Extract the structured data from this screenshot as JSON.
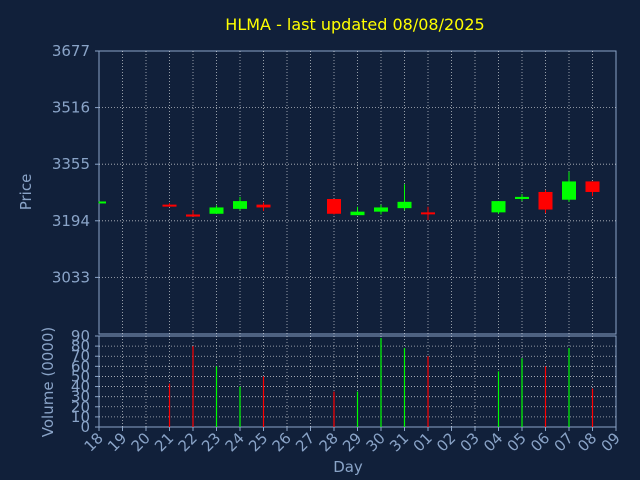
{
  "chart_data": {
    "type": "candlestick",
    "title": "HLMA - last updated 08/08/2025",
    "xlabel": "Day",
    "price_ylabel": "Price",
    "volume_ylabel": "Volume (0000)",
    "x_ticks": [
      "18",
      "19",
      "20",
      "21",
      "22",
      "23",
      "24",
      "25",
      "26",
      "27",
      "28",
      "29",
      "30",
      "31",
      "01",
      "02",
      "03",
      "04",
      "05",
      "06",
      "07",
      "08",
      "09"
    ],
    "price_ticks": [
      "3677",
      "3516",
      "3355",
      "3194",
      "3033"
    ],
    "price_ylim": [
      2872,
      3677
    ],
    "volume_ticks": [
      "0",
      "10",
      "20",
      "30",
      "40",
      "50",
      "60",
      "70",
      "80",
      "90"
    ],
    "volume_ylim": [
      0,
      90
    ],
    "colors": {
      "up": "#00ff00",
      "down": "#ff0000",
      "grid": "#ffffff",
      "axis": "#8aa4c8",
      "title": "#ffff00",
      "background": "#11203a",
      "plot_background": "#11203a"
    },
    "candles": [
      {
        "day": "18",
        "open": 3247,
        "high": 3249,
        "low": 3244,
        "close": 3249,
        "volume": 0
      },
      {
        "day": "21",
        "open": 3240,
        "high": 3244,
        "low": 3236,
        "close": 3236,
        "volume": 43
      },
      {
        "day": "22",
        "open": 3212,
        "high": 3224,
        "low": 3206,
        "close": 3206,
        "volume": 80
      },
      {
        "day": "23",
        "open": 3214,
        "high": 3238,
        "low": 3214,
        "close": 3232,
        "volume": 60
      },
      {
        "day": "24",
        "open": 3228,
        "high": 3262,
        "low": 3224,
        "close": 3250,
        "volume": 40
      },
      {
        "day": "25",
        "open": 3240,
        "high": 3246,
        "low": 3222,
        "close": 3232,
        "volume": 50
      },
      {
        "day": "28",
        "open": 3256,
        "high": 3256,
        "low": 3212,
        "close": 3214,
        "volume": 35
      },
      {
        "day": "29",
        "open": 3210,
        "high": 3234,
        "low": 3210,
        "close": 3220,
        "volume": 35
      },
      {
        "day": "30",
        "open": 3220,
        "high": 3240,
        "low": 3212,
        "close": 3232,
        "volume": 88
      },
      {
        "day": "31",
        "open": 3230,
        "high": 3298,
        "low": 3224,
        "close": 3248,
        "volume": 78
      },
      {
        "day": "01",
        "open": 3218,
        "high": 3234,
        "low": 3196,
        "close": 3214,
        "volume": 70
      },
      {
        "day": "04",
        "open": 3218,
        "high": 3250,
        "low": 3214,
        "close": 3250,
        "volume": 55
      },
      {
        "day": "05",
        "open": 3256,
        "high": 3270,
        "low": 3250,
        "close": 3262,
        "volume": 68
      },
      {
        "day": "06",
        "open": 3276,
        "high": 3282,
        "low": 3216,
        "close": 3226,
        "volume": 60
      },
      {
        "day": "07",
        "open": 3254,
        "high": 3334,
        "low": 3248,
        "close": 3306,
        "volume": 78
      },
      {
        "day": "08",
        "open": 3306,
        "high": 3306,
        "low": 3264,
        "close": 3276,
        "volume": 38
      }
    ]
  }
}
